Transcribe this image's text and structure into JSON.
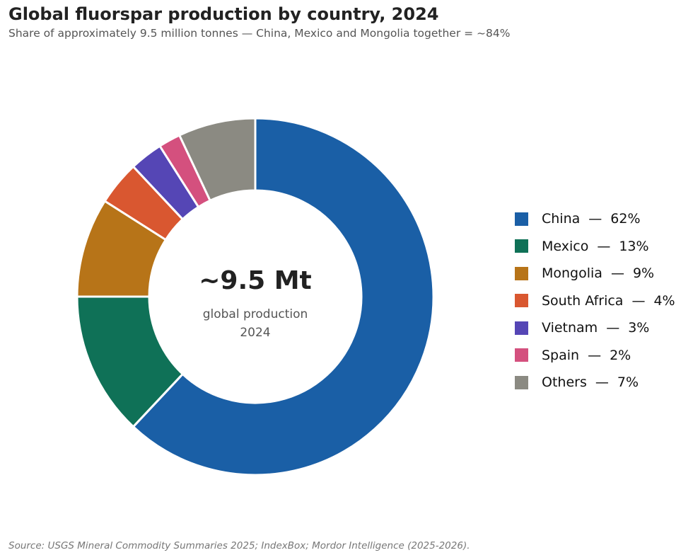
{
  "title": "Global fluorspar production by country, 2024",
  "subtitle": "Share of approximately 9.5 million tonnes — China, Mexico and Mongolia together = ~84%",
  "source": "Source: USGS Mineral Commodity Summaries 2025; IndexBox; Mordor Intelligence (2025-2026).",
  "legend_separator": "—",
  "center": {
    "value": "~9.5 Mt",
    "line1": "global production",
    "line2": "2024"
  },
  "chart_data": {
    "type": "pie",
    "variant": "donut",
    "title": "Global fluorspar production by country, 2024",
    "subtitle": "Share of approximately 9.5 million tonnes — China, Mexico and Mongolia together = ~84%",
    "legend_position": "right",
    "start": "top, clockwise",
    "categories": [
      "China",
      "Mexico",
      "Mongolia",
      "South Africa",
      "Vietnam",
      "Spain",
      "Others"
    ],
    "values": [
      62,
      13,
      9,
      4,
      3,
      2,
      7
    ],
    "value_labels": [
      "62%",
      "13%",
      "9%",
      "4%",
      "3%",
      "2%",
      "7%"
    ],
    "unit": "%",
    "colors": [
      "#1a5fa6",
      "#0f7157",
      "#b77418",
      "#d95730",
      "#5546b5",
      "#d4507e",
      "#8b8a82"
    ]
  }
}
